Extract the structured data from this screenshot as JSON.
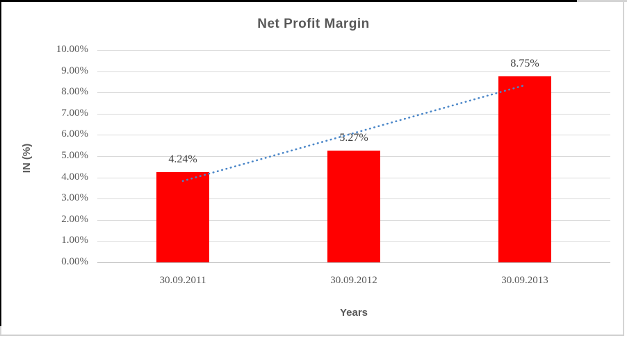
{
  "window": {
    "background": "#ffffff",
    "frame_border_dark": "#000000",
    "frame_border_light": "#d4d4d4"
  },
  "chart_data": {
    "type": "bar",
    "title": "Net Profit Margin",
    "categories": [
      "30.09.2011",
      "30.09.2012",
      "30.09.2013"
    ],
    "values": [
      4.24,
      5.27,
      8.75
    ],
    "data_labels": [
      "4.24%",
      "5.27%",
      "8.75%"
    ],
    "xlabel": "Years",
    "ylabel": "IN (%)",
    "ylim": [
      0,
      10
    ],
    "ytick_labels": [
      "0.00%",
      "1.00%",
      "2.00%",
      "3.00%",
      "4.00%",
      "5.00%",
      "6.00%",
      "7.00%",
      "8.00%",
      "9.00%",
      "10.00%"
    ],
    "grid": true,
    "legend": "none",
    "bar_color": "#ff0000",
    "gridline_color": "#d9d9d9",
    "axis_line_color": "#bfbfbf",
    "text_color": "#595959",
    "data_label_color": "#404040",
    "trendline": {
      "type": "linear",
      "style": "dotted",
      "color": "#4a86c8",
      "start_value": 3.83,
      "end_value": 8.34
    }
  }
}
